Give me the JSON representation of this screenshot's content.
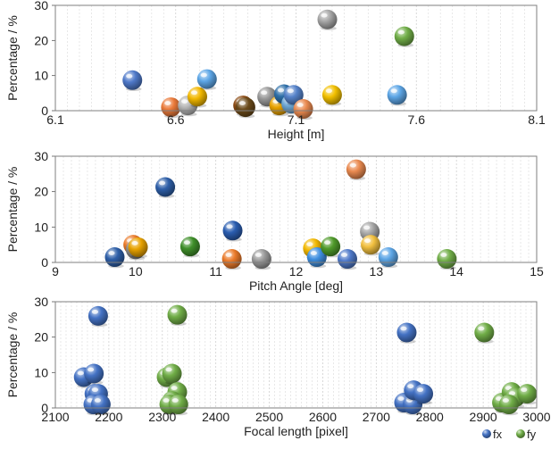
{
  "chart_data": [
    {
      "type": "scatter",
      "xlabel": "Height [m]",
      "ylabel": "Percentage / %",
      "xlim": [
        6.1,
        8.1
      ],
      "ylim": [
        0,
        30
      ],
      "xticks": [
        6.1,
        6.6,
        7.1,
        7.6,
        8.1
      ],
      "xtick_labels": [
        "6.1",
        "6.6",
        "7.1",
        "7.6",
        "8.1"
      ],
      "yticks": [
        0,
        10,
        20,
        30
      ],
      "ytick_labels": [
        "0",
        "10",
        "20",
        "30"
      ],
      "grid": "vertical minor gridlines",
      "points": [
        {
          "x": 6.42,
          "y": 8.7,
          "color": "#4f79c9"
        },
        {
          "x": 6.58,
          "y": 1.0,
          "color": "#ea7a3a"
        },
        {
          "x": 6.65,
          "y": 1.5,
          "color": "#b5b5b5"
        },
        {
          "x": 6.69,
          "y": 4.0,
          "color": "#f2b800"
        },
        {
          "x": 6.73,
          "y": 9.0,
          "color": "#5da6e6"
        },
        {
          "x": 6.88,
          "y": 1.5,
          "color": "#8b4a12"
        },
        {
          "x": 6.89,
          "y": 1.0,
          "color": "#6b4a1a"
        },
        {
          "x": 6.98,
          "y": 4.0,
          "color": "#999999"
        },
        {
          "x": 7.03,
          "y": 1.5,
          "color": "#e8a200"
        },
        {
          "x": 7.05,
          "y": 4.7,
          "color": "#2e6fa8"
        },
        {
          "x": 7.08,
          "y": 2.0,
          "color": "#6fa8d6"
        },
        {
          "x": 7.09,
          "y": 4.5,
          "color": "#5582c9"
        },
        {
          "x": 7.13,
          "y": 0.5,
          "color": "#ea8a50"
        },
        {
          "x": 7.23,
          "y": 26.0,
          "color": "#a6a6a6"
        },
        {
          "x": 7.25,
          "y": 4.5,
          "color": "#f2c000"
        },
        {
          "x": 7.52,
          "y": 4.5,
          "color": "#5da6e6"
        },
        {
          "x": 7.55,
          "y": 21.2,
          "color": "#70ad47"
        }
      ]
    },
    {
      "type": "scatter",
      "xlabel": "Pitch Angle [deg]",
      "ylabel": "Percentage / %",
      "xlim": [
        9,
        15
      ],
      "ylim": [
        0,
        30
      ],
      "xticks": [
        9,
        10,
        11,
        12,
        13,
        14,
        15
      ],
      "xtick_labels": [
        "9",
        "10",
        "11",
        "12",
        "13",
        "14",
        "15"
      ],
      "yticks": [
        0,
        10,
        20,
        30
      ],
      "ytick_labels": [
        "0",
        "10",
        "20",
        "30"
      ],
      "grid": "vertical minor gridlines",
      "points": [
        {
          "x": 9.74,
          "y": 1.5,
          "color": "#2e5fa8"
        },
        {
          "x": 9.97,
          "y": 5.0,
          "color": "#ea7a2a"
        },
        {
          "x": 10.0,
          "y": 3.7,
          "color": "#8a8a8a"
        },
        {
          "x": 10.03,
          "y": 4.3,
          "color": "#e8a200"
        },
        {
          "x": 10.37,
          "y": 21.3,
          "color": "#2e5fa8"
        },
        {
          "x": 10.68,
          "y": 4.5,
          "color": "#3f8f2a"
        },
        {
          "x": 11.21,
          "y": 9.0,
          "color": "#2a5db0"
        },
        {
          "x": 11.2,
          "y": 1.0,
          "color": "#ea7a2a"
        },
        {
          "x": 11.57,
          "y": 1.0,
          "color": "#9a9a9a"
        },
        {
          "x": 12.21,
          "y": 4.0,
          "color": "#f2b800"
        },
        {
          "x": 12.26,
          "y": 1.5,
          "color": "#3f8fe0"
        },
        {
          "x": 12.43,
          "y": 4.5,
          "color": "#4f9a2a"
        },
        {
          "x": 12.64,
          "y": 1.0,
          "color": "#4f79c9"
        },
        {
          "x": 12.75,
          "y": 26.3,
          "color": "#ea8a50"
        },
        {
          "x": 12.92,
          "y": 8.7,
          "color": "#a6a6a6"
        },
        {
          "x": 12.93,
          "y": 5.0,
          "color": "#f2c040"
        },
        {
          "x": 13.15,
          "y": 1.5,
          "color": "#5da6e6"
        },
        {
          "x": 13.88,
          "y": 1.0,
          "color": "#70ad47"
        }
      ]
    },
    {
      "type": "scatter",
      "xlabel": "Focal length [pixel]",
      "ylabel": "Percentage / %",
      "xlim": [
        2100,
        3000
      ],
      "ylim": [
        0,
        30
      ],
      "xticks": [
        2100,
        2200,
        2300,
        2400,
        2500,
        2600,
        2700,
        2800,
        2900,
        3000
      ],
      "xtick_labels": [
        "2100",
        "2200",
        "2300",
        "2400",
        "2500",
        "2600",
        "2700",
        "2800",
        "2900",
        "3000"
      ],
      "yticks": [
        0,
        10,
        20,
        30
      ],
      "ytick_labels": [
        "0",
        "10",
        "20",
        "30"
      ],
      "grid": "vertical minor gridlines",
      "legend": {
        "placement": "bottom-right",
        "entries": [
          "fx",
          "fy"
        ]
      },
      "series": [
        {
          "name": "fx",
          "color": "#4472c4",
          "points": [
            {
              "x": 2153,
              "y": 8.7
            },
            {
              "x": 2172,
              "y": 9.7
            },
            {
              "x": 2180,
              "y": 26.0
            },
            {
              "x": 2173,
              "y": 4.0
            },
            {
              "x": 2180,
              "y": 4.0
            },
            {
              "x": 2171,
              "y": 1.0
            },
            {
              "x": 2185,
              "y": 1.0
            },
            {
              "x": 2757,
              "y": 21.3
            },
            {
              "x": 2752,
              "y": 1.5
            },
            {
              "x": 2768,
              "y": 1.0
            },
            {
              "x": 2770,
              "y": 5.0
            },
            {
              "x": 2788,
              "y": 4.0
            }
          ]
        },
        {
          "name": "fy",
          "color": "#70ad47",
          "points": [
            {
              "x": 2328,
              "y": 26.3
            },
            {
              "x": 2308,
              "y": 8.7
            },
            {
              "x": 2318,
              "y": 9.7
            },
            {
              "x": 2328,
              "y": 4.5
            },
            {
              "x": 2318,
              "y": 2.0
            },
            {
              "x": 2313,
              "y": 1.0
            },
            {
              "x": 2330,
              "y": 1.0
            },
            {
              "x": 2902,
              "y": 21.3
            },
            {
              "x": 2935,
              "y": 1.5
            },
            {
              "x": 2953,
              "y": 4.5
            },
            {
              "x": 2960,
              "y": 3.0
            },
            {
              "x": 2948,
              "y": 1.0
            },
            {
              "x": 2982,
              "y": 4.0
            }
          ]
        }
      ]
    }
  ]
}
